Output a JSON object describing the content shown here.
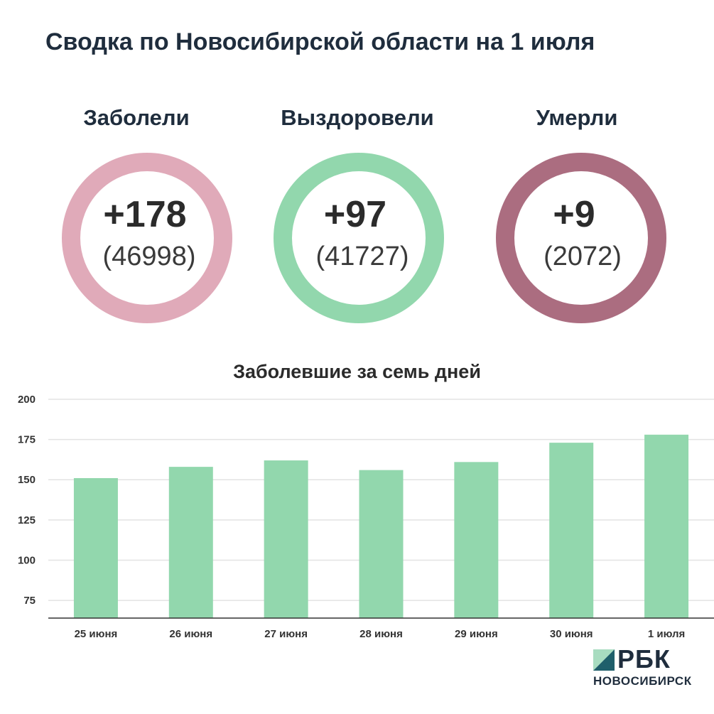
{
  "title": "Сводка по Новосибирской области на 1 июля",
  "stats": [
    {
      "label": "Заболели",
      "delta": "+178",
      "total": "(46998)",
      "color": "#e0aab9"
    },
    {
      "label": "Выздоровели",
      "delta": "+97",
      "total": "(41727)",
      "color": "#92d7ad"
    },
    {
      "label": "Умерли",
      "delta": "+9",
      "total": "(2072)",
      "color": "#ab6d80"
    }
  ],
  "chart_data": {
    "type": "bar",
    "title": "Заболевшие за семь дней",
    "categories": [
      "25 июня",
      "26 июня",
      "27 июня",
      "28 июня",
      "29 июня",
      "30 июня",
      "1 июля"
    ],
    "values": [
      151,
      158,
      162,
      156,
      161,
      173,
      178
    ],
    "yticks": [
      75,
      100,
      125,
      150,
      175,
      200
    ],
    "ylim": [
      64,
      200
    ],
    "grid": true,
    "bar_color": "#92d7ad"
  },
  "logo": {
    "text": "РБК",
    "subtitle": "НОВОСИБИРСК",
    "colors": [
      "#1f5f6b",
      "#a8dcc0"
    ]
  }
}
